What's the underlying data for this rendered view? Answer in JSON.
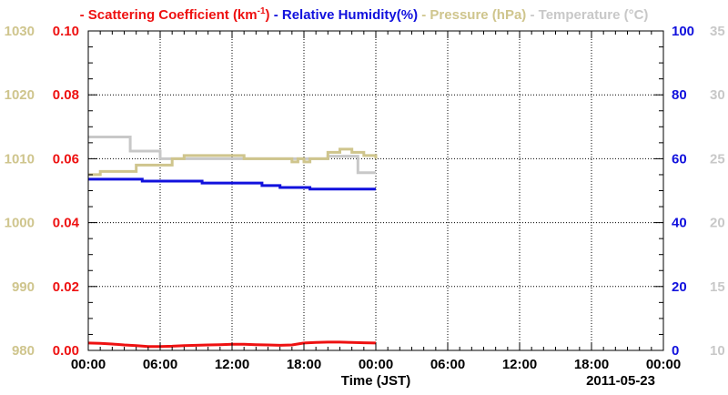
{
  "chart_data": {
    "type": "line",
    "legend": [
      {
        "name": "Scattering Coefficient (km",
        "sup": "-1",
        "tail": ")",
        "color": "#ee1111"
      },
      {
        "name": "Relative Humidity(%)",
        "color": "#1111dd"
      },
      {
        "name": "Pressure (hPa)",
        "color": "#cfc58d"
      },
      {
        "name": "Temperature (",
        "glyph": "°",
        "tail": "C)",
        "color": "#c8c8c8"
      }
    ],
    "legend_dash": "-",
    "axes": {
      "pressure": {
        "range": [
          980,
          1030
        ],
        "ticks": [
          "980",
          "990",
          "1000",
          "1010",
          "1020",
          "1030"
        ],
        "color": "#cfc58d"
      },
      "scattering": {
        "range": [
          0,
          0.1
        ],
        "ticks": [
          "0.00",
          "0.02",
          "0.04",
          "0.06",
          "0.08",
          "0.10"
        ],
        "color": "#ee1111"
      },
      "humidity": {
        "range": [
          0,
          100
        ],
        "ticks": [
          "0",
          "20",
          "40",
          "60",
          "80",
          "100"
        ],
        "color": "#1111dd"
      },
      "temperature": {
        "range": [
          10,
          35
        ],
        "ticks": [
          "10",
          "15",
          "20",
          "25",
          "30",
          "35"
        ],
        "color": "#c8c8c8"
      }
    },
    "x_range_hours": [
      0,
      48
    ],
    "x_ticks": [
      "00:00",
      "06:00",
      "12:00",
      "18:00",
      "00:00",
      "06:00",
      "12:00",
      "18:00",
      "00:00"
    ],
    "xlabel": "Time (JST)",
    "date": "2011-05-23",
    "grid": true,
    "series": [
      {
        "name": "Scattering Coefficient",
        "axis": "scattering",
        "points": [
          [
            0,
            0.0023
          ],
          [
            1,
            0.0022
          ],
          [
            2,
            0.002
          ],
          [
            3,
            0.0017
          ],
          [
            4,
            0.0015
          ],
          [
            5,
            0.0012
          ],
          [
            6,
            0.0012
          ],
          [
            7,
            0.0013
          ],
          [
            8,
            0.0015
          ],
          [
            9,
            0.0016
          ],
          [
            10,
            0.0017
          ],
          [
            11,
            0.0018
          ],
          [
            12,
            0.0019
          ],
          [
            13,
            0.0019
          ],
          [
            14,
            0.0018
          ],
          [
            15,
            0.0017
          ],
          [
            16,
            0.0016
          ],
          [
            17,
            0.0017
          ],
          [
            18,
            0.0023
          ],
          [
            19,
            0.0025
          ],
          [
            20,
            0.0026
          ],
          [
            21,
            0.0026
          ],
          [
            22,
            0.0025
          ],
          [
            23,
            0.0024
          ],
          [
            24,
            0.0023
          ]
        ]
      },
      {
        "name": "Relative Humidity",
        "axis": "humidity",
        "points": [
          [
            0,
            53.6
          ],
          [
            4.5,
            53.6
          ],
          [
            4.5,
            53.0
          ],
          [
            9.5,
            53.0
          ],
          [
            9.5,
            52.4
          ],
          [
            14.5,
            52.4
          ],
          [
            14.5,
            51.6
          ],
          [
            16,
            51.6
          ],
          [
            16,
            51.0
          ],
          [
            18.5,
            51.0
          ],
          [
            18.5,
            50.5
          ],
          [
            24,
            50.5
          ]
        ]
      },
      {
        "name": "Pressure",
        "axis": "pressure",
        "points": [
          [
            0,
            1007.5
          ],
          [
            1,
            1007.5
          ],
          [
            1,
            1008
          ],
          [
            4,
            1008
          ],
          [
            4,
            1009
          ],
          [
            7,
            1009
          ],
          [
            7,
            1010
          ],
          [
            8,
            1010
          ],
          [
            8,
            1010.5
          ],
          [
            13,
            1010.5
          ],
          [
            13,
            1010
          ],
          [
            17,
            1010
          ],
          [
            17,
            1009.5
          ],
          [
            17.5,
            1009.5
          ],
          [
            17.5,
            1010
          ],
          [
            18,
            1010
          ],
          [
            18,
            1009.5
          ],
          [
            18.5,
            1009.5
          ],
          [
            18.5,
            1010
          ],
          [
            20,
            1010
          ],
          [
            20,
            1011
          ],
          [
            21,
            1011
          ],
          [
            21,
            1011.5
          ],
          [
            22,
            1011.5
          ],
          [
            22,
            1011
          ],
          [
            23,
            1011
          ],
          [
            23,
            1010.5
          ],
          [
            24,
            1010.5
          ],
          [
            24,
            1010
          ]
        ]
      },
      {
        "name": "Temperature",
        "axis": "temperature",
        "points": [
          [
            0,
            26.7
          ],
          [
            3.5,
            26.7
          ],
          [
            3.5,
            25.6
          ],
          [
            6,
            25.6
          ],
          [
            6,
            25.0
          ],
          [
            20,
            25.0
          ],
          [
            20,
            25.2
          ],
          [
            22.5,
            25.2
          ],
          [
            22.5,
            23.9
          ],
          [
            24,
            23.9
          ]
        ]
      }
    ]
  }
}
